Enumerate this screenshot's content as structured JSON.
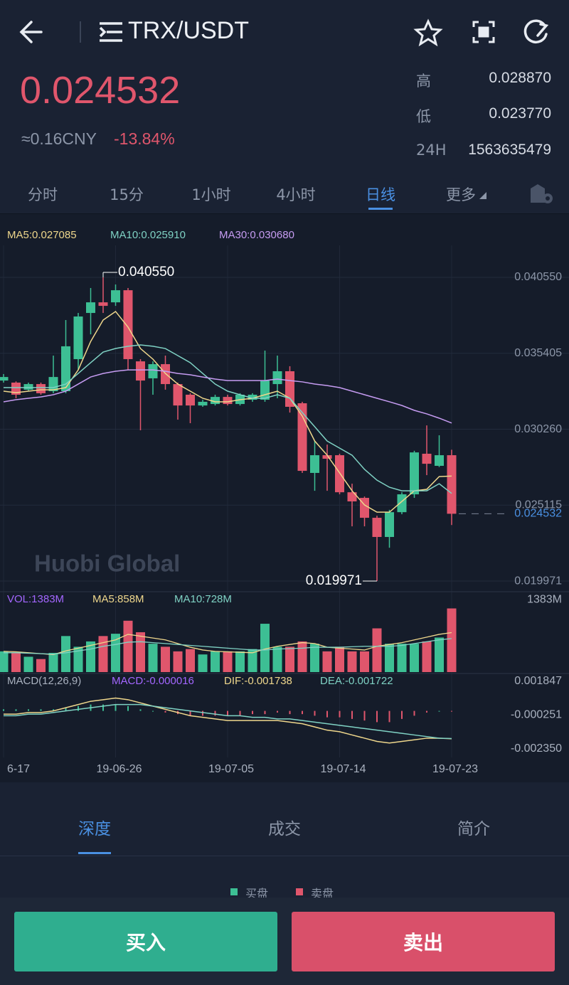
{
  "header": {
    "pair": "TRX/USDT"
  },
  "ticker": {
    "price": "0.024532",
    "cny": "≈0.16CNY",
    "change": "-13.84%",
    "stats": [
      {
        "label": "高",
        "value": "0.028870"
      },
      {
        "label": "低",
        "value": "0.023770"
      },
      {
        "label": "24H",
        "value": "1563635479"
      }
    ]
  },
  "periods": [
    "分时",
    "15分",
    "1小时",
    "4小时",
    "日线",
    "更多"
  ],
  "chart_data": {
    "type": "candlestick",
    "categories": [
      "6-17",
      null,
      null,
      null,
      null,
      null,
      null,
      null,
      null,
      "19-06-26",
      null,
      null,
      null,
      null,
      null,
      null,
      null,
      null,
      "19-07-05",
      null,
      null,
      null,
      null,
      null,
      null,
      null,
      null,
      "19-07-14",
      null,
      null,
      null,
      null,
      null,
      null,
      null,
      null,
      "19-07-23"
    ],
    "open": [
      0.03356,
      0.03342,
      0.03294,
      0.03332,
      0.03284,
      0.03284,
      0.03501,
      0.03814,
      0.03886,
      0.03886,
      0.03968,
      0.03486,
      0.03371,
      0.03467,
      0.03332,
      0.0326,
      0.03187,
      0.03197,
      0.03245,
      0.03197,
      0.03226,
      0.03226,
      0.03332,
      0.03419,
      0.03202,
      0.0273,
      0.0285,
      0.0285,
      0.02599,
      0.02561,
      0.02426,
      0.02296,
      0.02464,
      0.02585,
      0.0286,
      0.02778,
      0.0285
    ],
    "high": [
      0.034,
      0.0335,
      0.03342,
      0.03342,
      0.03525,
      0.03766,
      0.03814,
      0.03983,
      0.04055,
      0.04007,
      0.03983,
      0.03501,
      0.03486,
      0.03525,
      0.03342,
      0.0327,
      0.03226,
      0.0326,
      0.0326,
      0.0327,
      0.0327,
      0.03559,
      0.03525,
      0.03453,
      0.03212,
      0.02946,
      0.02922,
      0.0286,
      0.02657,
      0.0257,
      0.0244,
      0.0248,
      0.02599,
      0.0288,
      0.03052,
      0.02985,
      0.02887
    ],
    "low": [
      0.03342,
      0.03236,
      0.03284,
      0.0326,
      0.0327,
      0.0327,
      0.03428,
      0.03669,
      0.03814,
      0.03862,
      0.03428,
      0.03019,
      0.0326,
      0.03294,
      0.03091,
      0.03067,
      0.03178,
      0.03187,
      0.03187,
      0.03187,
      0.03212,
      0.03212,
      0.03236,
      0.03139,
      0.0273,
      0.02609,
      0.02609,
      0.02585,
      0.02368,
      0.02368,
      0.019971,
      0.02223,
      0.0245,
      0.02561,
      0.02715,
      0.0277,
      0.02377
    ],
    "close": [
      0.0338,
      0.0326,
      0.03332,
      0.0327,
      0.0338,
      0.03588,
      0.0379,
      0.03886,
      0.03862,
      0.03968,
      0.03501,
      0.03356,
      0.03467,
      0.03332,
      0.03187,
      0.03187,
      0.03212,
      0.03245,
      0.03197,
      0.0326,
      0.0326,
      0.03356,
      0.03419,
      0.03178,
      0.02744,
      0.0285,
      0.02826,
      0.02599,
      0.02537,
      0.02426,
      0.02296,
      0.02464,
      0.02585,
      0.02869,
      0.02792,
      0.0285,
      0.024532
    ],
    "up_color": "#3dbf94",
    "down_color": "#e0566c",
    "ylim": [
      0.01925,
      0.04272
    ],
    "yticks": [
      {
        "value": 0.04055,
        "label": "0.040550"
      },
      0.035405,
      {
        "value": 0.03026,
        "label": "0.030260"
      },
      0.025115,
      0.019971
    ],
    "grid": true,
    "overlays": [
      {
        "name": "MA5:0.027085",
        "color": "#efd78c",
        "values": [
          0.03284,
          0.03274,
          0.03284,
          0.03293,
          0.03293,
          0.03308,
          0.03428,
          0.03621,
          0.03766,
          0.03824,
          0.03718,
          0.03573,
          0.03501,
          0.03404,
          0.03332,
          0.03284,
          0.03236,
          0.03212,
          0.03212,
          0.03226,
          0.03236,
          0.0326,
          0.03284,
          0.03236,
          0.03115,
          0.02946,
          0.0285,
          0.0273,
          0.02609,
          0.02513,
          0.02464,
          0.02464,
          0.02537,
          0.02609,
          0.02619,
          0.02705,
          0.027085
        ]
      },
      {
        "name": "MA10:0.025910",
        "color": "#7fd2c4",
        "values": [
          0.03308,
          0.03308,
          0.03308,
          0.03308,
          0.03308,
          0.03332,
          0.03404,
          0.03477,
          0.03549,
          0.03573,
          0.03588,
          0.03597,
          0.03588,
          0.03573,
          0.03525,
          0.03477,
          0.03404,
          0.03332,
          0.03284,
          0.0326,
          0.03236,
          0.03236,
          0.0326,
          0.03236,
          0.03139,
          0.03043,
          0.02946,
          0.02898,
          0.0285,
          0.02754,
          0.02681,
          0.02633,
          0.02609,
          0.02609,
          0.02609,
          0.02657,
          0.02591
        ]
      },
      {
        "name": "MA30:0.030680",
        "color": "#c69cf2",
        "values": [
          0.03212,
          0.03226,
          0.03236,
          0.03245,
          0.0326,
          0.03284,
          0.03332,
          0.0338,
          0.03404,
          0.03419,
          0.03428,
          0.03428,
          0.03428,
          0.03419,
          0.03404,
          0.03395,
          0.0338,
          0.03366,
          0.03356,
          0.03356,
          0.03356,
          0.03356,
          0.03366,
          0.03356,
          0.03347,
          0.03332,
          0.03322,
          0.03308,
          0.03284,
          0.0326,
          0.03236,
          0.03212,
          0.03187,
          0.03154,
          0.0313,
          0.03101,
          0.03068
        ]
      }
    ],
    "high_label": {
      "value": 0.04055,
      "label": "0.040550"
    },
    "low_label": {
      "value": 0.019971,
      "label": "0.019971"
    },
    "last_price": {
      "value": 0.024532,
      "label": "0.024532"
    },
    "volume": {
      "name": "VOL:1383M",
      "name_color": "#a366ff",
      "values": [
        450,
        417,
        333,
        283,
        417,
        783,
        550,
        666,
        783,
        833,
        1116,
        866,
        616,
        550,
        450,
        500,
        383,
        450,
        450,
        450,
        500,
        1050,
        550,
        550,
        666,
        616,
        450,
        550,
        450,
        450,
        950,
        616,
        616,
        616,
        666,
        750,
        1383
      ],
      "ylim": [
        0,
        1700
      ],
      "yticks": [
        {
          "value": 1383,
          "label": "1383M"
        }
      ],
      "series": [
        {
          "name": "MA5:858M",
          "color": "#efd78c",
          "values": [
            450,
            440,
            420,
            400,
            380,
            460,
            520,
            580,
            640,
            700,
            820,
            780,
            740,
            700,
            620,
            540,
            480,
            450,
            440,
            430,
            420,
            500,
            560,
            600,
            640,
            620,
            540,
            520,
            500,
            480,
            560,
            600,
            640,
            700,
            760,
            820,
            858
          ]
        },
        {
          "name": "MA10:728M",
          "color": "#7fd2c4",
          "values": [
            420,
            420,
            410,
            400,
            390,
            420,
            460,
            500,
            560,
            600,
            650,
            660,
            640,
            620,
            600,
            580,
            560,
            540,
            520,
            500,
            480,
            480,
            500,
            510,
            520,
            540,
            540,
            540,
            550,
            560,
            560,
            560,
            580,
            620,
            660,
            700,
            728
          ]
        }
      ]
    },
    "macd": {
      "title": "MACD(12,26,9)",
      "ylim": [
        -0.0029,
        0.0022
      ],
      "yticks": [
        0.001847,
        -0.000251,
        {
          "value": -0.00235,
          "label": "-0.002350"
        }
      ],
      "histogram": {
        "name": "MACD:-0.000016",
        "color": "#a366ff",
        "values": [
          0.0001,
          0.0001,
          0.0001,
          0.0001,
          0.0001,
          0.0002,
          0.0003,
          0.0004,
          0.0004,
          0.0004,
          0.0003,
          0.0001,
          0,
          -0.0001,
          -0.0002,
          -0.0003,
          -0.0003,
          -0.0003,
          -0.0003,
          -0.0003,
          -0.0002,
          -0.0002,
          -0.0001,
          -0.0002,
          -0.0002,
          -0.0003,
          -0.0004,
          -0.0004,
          -0.0005,
          -0.0006,
          -0.0007,
          -0.0007,
          -0.0005,
          -0.0003,
          -0.0001,
          0,
          -1.6e-05
        ]
      },
      "series": [
        {
          "name": "DIF:-0.001738",
          "color": "#efd78c",
          "values": [
            -0.0002,
            -0.0002,
            -0.0001,
            -0.0001,
            0,
            0.0002,
            0.0004,
            0.0006,
            0.0007,
            0.0008,
            0.0007,
            0.0005,
            0.0003,
            0.0001,
            -0.0001,
            -0.0003,
            -0.0004,
            -0.0005,
            -0.0006,
            -0.0006,
            -0.0006,
            -0.0006,
            -0.0006,
            -0.0007,
            -0.0008,
            -0.001,
            -0.0012,
            -0.0013,
            -0.0015,
            -0.0017,
            -0.0019,
            -0.002,
            -0.0019,
            -0.0018,
            -0.0017,
            -0.0017,
            -0.001738
          ]
        },
        {
          "name": "DEA:-0.001722",
          "color": "#7fd2c4",
          "values": [
            -0.0003,
            -0.0003,
            -0.0002,
            -0.0002,
            -0.0001,
            0,
            0.0001,
            0.0002,
            0.0003,
            0.0004,
            0.0004,
            0.0004,
            0.0003,
            0.0002,
            0.0001,
            0,
            -0.0001,
            -0.0002,
            -0.0003,
            -0.0003,
            -0.0004,
            -0.0004,
            -0.0005,
            -0.0005,
            -0.0006,
            -0.0007,
            -0.0008,
            -0.0009,
            -0.001,
            -0.0011,
            -0.0012,
            -0.0013,
            -0.0014,
            -0.0015,
            -0.0016,
            -0.0017,
            -0.001722
          ]
        }
      ]
    }
  },
  "watermark": "Huobi Global",
  "detail_tabs": [
    "深度",
    "成交",
    "简介"
  ],
  "depth_legend": [
    "买盘",
    "卖盘"
  ],
  "actions": [
    "买入",
    "卖出"
  ]
}
